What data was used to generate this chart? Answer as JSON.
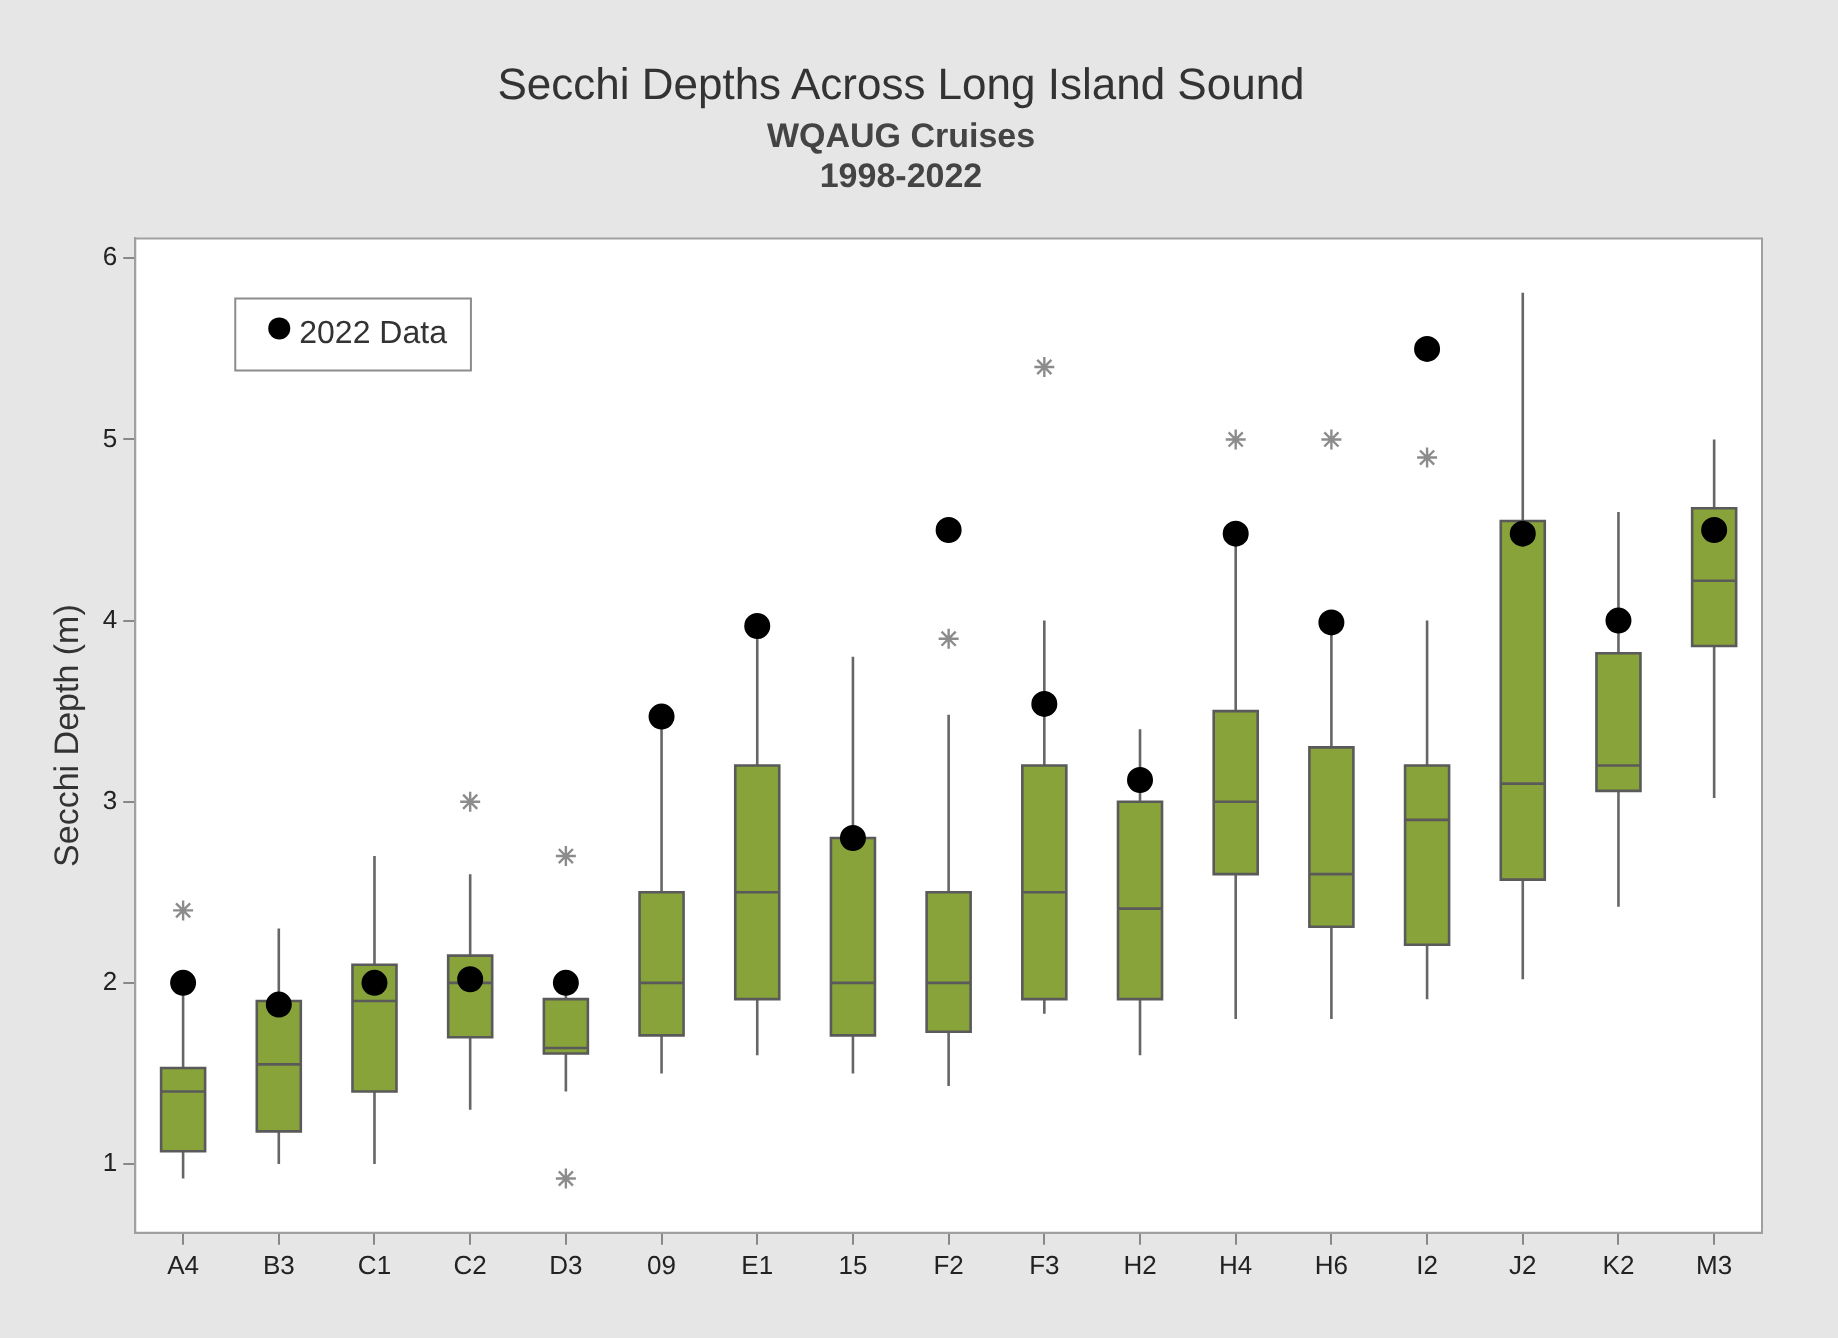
{
  "chart_data": {
    "type": "box",
    "title": "Secchi Depths Across Long Island Sound",
    "subtitle": "WQAUG Cruises\n1998-2022",
    "ylabel": "Secchi Depth (m)",
    "categories": [
      "A4",
      "B3",
      "C1",
      "C2",
      "D3",
      "09",
      "E1",
      "15",
      "F2",
      "F3",
      "H2",
      "H4",
      "H6",
      "I2",
      "J2",
      "K2",
      "M3"
    ],
    "ylim": [
      0.62,
      6.11
    ],
    "yticks": [
      1,
      2,
      3,
      4,
      5,
      6
    ],
    "grid": false,
    "legend": "top left",
    "series": [
      {
        "color": "#88a33a",
        "boxes": [
          {
            "low": 0.92,
            "q1": 1.07,
            "median": 1.4,
            "q3": 1.53,
            "high": 2.0,
            "outliers": [
              2.4
            ]
          },
          {
            "low": 1.0,
            "q1": 1.18,
            "median": 1.55,
            "q3": 1.9,
            "high": 2.3
          },
          {
            "low": 1.0,
            "q1": 1.4,
            "median": 1.9,
            "q3": 2.1,
            "high": 2.7
          },
          {
            "low": 1.3,
            "q1": 1.7,
            "median": 2.0,
            "q3": 2.15,
            "high": 2.6,
            "outliers": [
              3.0
            ]
          },
          {
            "low": 1.4,
            "q1": 1.61,
            "median": 1.64,
            "q3": 1.91,
            "high": 1.95,
            "outliers": [
              2.7,
              0.92
            ]
          },
          {
            "low": 1.5,
            "q1": 1.71,
            "median": 2.0,
            "q3": 2.5,
            "high": 3.47
          },
          {
            "low": 1.6,
            "q1": 1.91,
            "median": 2.5,
            "q3": 3.2,
            "high": 3.97
          },
          {
            "low": 1.5,
            "q1": 1.71,
            "median": 2.0,
            "q3": 2.8,
            "high": 3.8
          },
          {
            "low": 1.43,
            "q1": 1.73,
            "median": 2.0,
            "q3": 2.5,
            "high": 3.48,
            "outliers": [
              3.9
            ]
          },
          {
            "low": 1.83,
            "q1": 1.91,
            "median": 2.5,
            "q3": 3.2,
            "high": 4.0,
            "outliers": [
              5.4
            ]
          },
          {
            "low": 1.6,
            "q1": 1.91,
            "median": 2.41,
            "q3": 3.0,
            "high": 3.4
          },
          {
            "low": 1.8,
            "q1": 2.6,
            "median": 3.0,
            "q3": 3.5,
            "high": 4.48,
            "outliers": [
              5.0
            ]
          },
          {
            "low": 1.8,
            "q1": 2.31,
            "median": 2.6,
            "q3": 3.3,
            "high": 4.0,
            "outliers": [
              5.0
            ]
          },
          {
            "low": 1.91,
            "q1": 2.21,
            "median": 2.9,
            "q3": 3.2,
            "high": 4.0,
            "outliers": [
              4.9
            ]
          },
          {
            "low": 2.02,
            "q1": 2.57,
            "median": 3.1,
            "q3": 4.55,
            "high": 5.81
          },
          {
            "low": 2.42,
            "q1": 3.06,
            "median": 3.2,
            "q3": 3.82,
            "high": 4.6
          },
          {
            "low": 3.02,
            "q1": 3.86,
            "median": 4.22,
            "q3": 4.62,
            "high": 5.0
          }
        ]
      },
      {
        "type": "scatter",
        "name": "2022 Data",
        "color": "#000000",
        "marker": "circle",
        "x": [
          "A4",
          "B3",
          "C1",
          "C2",
          "D3",
          "09",
          "E1",
          "15",
          "F2",
          "F3",
          "H2",
          "H4",
          "H6",
          "I2",
          "J2",
          "K2",
          "M3"
        ],
        "values": [
          2.0,
          1.88,
          2.0,
          2.02,
          2.0,
          3.47,
          3.97,
          2.8,
          4.5,
          3.54,
          3.12,
          4.48,
          3.99,
          5.5,
          4.48,
          4.0,
          4.5
        ]
      }
    ]
  }
}
